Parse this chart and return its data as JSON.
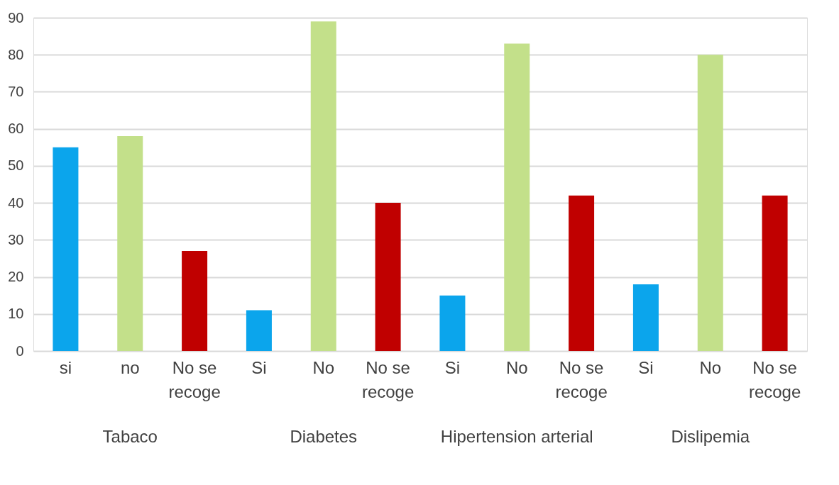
{
  "chart_data": {
    "type": "bar",
    "categories": [
      "si",
      "no",
      "No se recoge",
      "Si",
      "No",
      "No se recoge",
      "Si",
      "No",
      "No se recoge",
      "Si",
      "No",
      "No se recoge"
    ],
    "values": [
      55,
      58,
      27,
      11,
      89,
      40,
      15,
      83,
      42,
      18,
      80,
      42
    ],
    "colors": [
      "#0ba5ec",
      "#c3e08a",
      "#c00000",
      "#0ba5ec",
      "#c3e08a",
      "#c00000",
      "#0ba5ec",
      "#c3e08a",
      "#c00000",
      "#0ba5ec",
      "#c3e08a",
      "#c00000"
    ],
    "annotations": [
      "Tabaco",
      "Diabetes",
      "Hipertension arterial",
      "Dislipemia"
    ],
    "ylim": [
      0,
      90
    ],
    "yticks": [
      0,
      10,
      20,
      30,
      40,
      50,
      60,
      70,
      80,
      90
    ],
    "grid": "y"
  }
}
